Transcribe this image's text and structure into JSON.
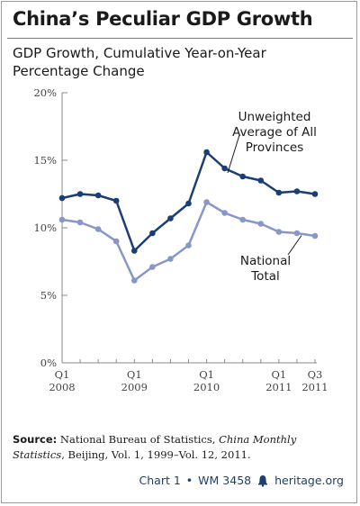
{
  "title": "China’s Peculiar GDP Growth",
  "subtitle": "GDP Growth, Cumulative Year-on-Year Percentage Change",
  "colors": {
    "unweighted": "#1b3e74",
    "national": "#8797c8",
    "axis": "#8a8a8a"
  },
  "source": {
    "label": "Source:",
    "text_before": " National Bureau of Statistics, ",
    "publication": "China Monthly Statistics",
    "text_after": ", Beijing, Vol. 1, 1999–Vol. 12, 2011."
  },
  "footer": {
    "chart_label": "Chart 1",
    "separator": "•",
    "wm": "WM 3458",
    "site": "heritage.org",
    "icon": "liberty-bell-icon"
  },
  "chart_data": {
    "type": "line",
    "ylim": [
      0,
      20
    ],
    "yticks": [
      "0%",
      "5%",
      "10%",
      "15%",
      "20%"
    ],
    "x": [
      "Q1 2008",
      "Q2 2008",
      "Q3 2008",
      "Q4 2008",
      "Q1 2009",
      "Q2 2009",
      "Q3 2009",
      "Q4 2009",
      "Q1 2010",
      "Q2 2010",
      "Q3 2010",
      "Q4 2010",
      "Q1 2011",
      "Q2 2011",
      "Q3 2011"
    ],
    "xtick_labels": [
      {
        "index": 0,
        "top": "Q1",
        "bottom": "2008"
      },
      {
        "index": 4,
        "top": "Q1",
        "bottom": "2009"
      },
      {
        "index": 8,
        "top": "Q1",
        "bottom": "2010"
      },
      {
        "index": 12,
        "top": "Q1",
        "bottom": "2011"
      },
      {
        "index": 14,
        "top": "Q3",
        "bottom": "2011"
      }
    ],
    "grid": false,
    "series": [
      {
        "name": "Unweighted Average of All Provinces",
        "label_lines": [
          "Unweighted",
          "Average of All",
          "Provinces"
        ],
        "values": [
          12.2,
          12.5,
          12.4,
          12.0,
          8.3,
          9.6,
          10.7,
          11.8,
          15.6,
          14.4,
          13.8,
          13.5,
          12.6,
          12.7,
          12.5
        ]
      },
      {
        "name": "National Total",
        "label_lines": [
          "National",
          "Total"
        ],
        "values": [
          10.6,
          10.4,
          9.9,
          9.0,
          6.1,
          7.1,
          7.7,
          8.7,
          11.9,
          11.1,
          10.6,
          10.3,
          9.7,
          9.6,
          9.4
        ]
      }
    ]
  }
}
